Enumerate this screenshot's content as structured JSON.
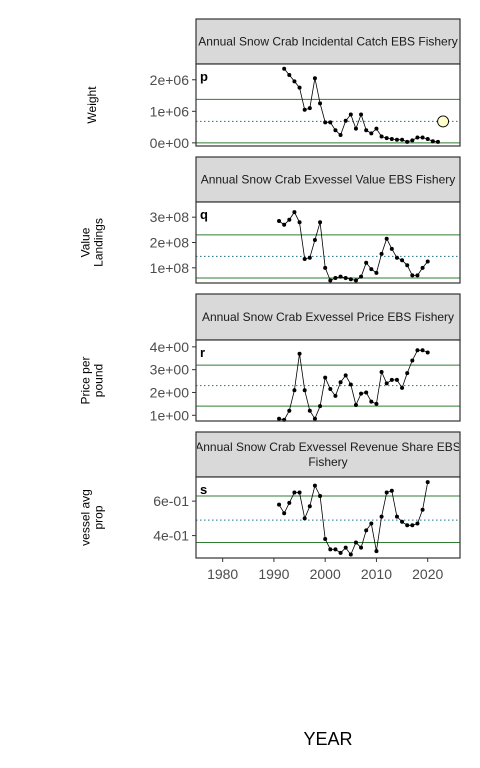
{
  "chart_data": [
    {
      "type": "line",
      "panel_tag": "p",
      "title": "Annual Snow Crab Incidental Catch EBS Fishery",
      "ylabel": "Weight",
      "yticks": [
        0,
        1000000,
        2000000
      ],
      "ytick_labels": [
        "0e+00",
        "1e+06",
        "2e+06"
      ],
      "ylim": [
        -100000,
        2500000
      ],
      "mean": 680000,
      "upper": 1380000,
      "lower": 0,
      "highlight": {
        "x": 2023,
        "y": 680000
      },
      "x": [
        1992,
        1993,
        1994,
        1995,
        1996,
        1997,
        1998,
        1999,
        2000,
        2001,
        2002,
        2003,
        2004,
        2005,
        2006,
        2007,
        2008,
        2009,
        2010,
        2011,
        2012,
        2013,
        2014,
        2015,
        2016,
        2017,
        2018,
        2019,
        2020,
        2021,
        2022
      ],
      "y": [
        2350000,
        2150000,
        1950000,
        1750000,
        1050000,
        1100000,
        2050000,
        1250000,
        650000,
        650000,
        400000,
        250000,
        700000,
        900000,
        450000,
        900000,
        400000,
        300000,
        450000,
        200000,
        150000,
        120000,
        100000,
        100000,
        30000,
        80000,
        170000,
        170000,
        120000,
        50000,
        30000
      ]
    },
    {
      "type": "line",
      "panel_tag": "q",
      "title": "Annual Snow Crab Exvessel Value EBS Fishery",
      "ylabel": "Value\nLandings",
      "yticks": [
        100000000,
        200000000,
        300000000
      ],
      "ytick_labels": [
        "1e+08",
        "2e+08",
        "3e+08"
      ],
      "ylim": [
        40000000,
        360000000
      ],
      "mean": 145000000,
      "upper": 230000000,
      "lower": 60000000,
      "x": [
        1991,
        1992,
        1993,
        1994,
        1995,
        1996,
        1997,
        1998,
        1999,
        2000,
        2001,
        2002,
        2003,
        2004,
        2005,
        2006,
        2007,
        2008,
        2009,
        2010,
        2011,
        2012,
        2013,
        2014,
        2015,
        2016,
        2017,
        2018,
        2019,
        2020
      ],
      "y": [
        285000000,
        270000000,
        290000000,
        320000000,
        280000000,
        135000000,
        140000000,
        210000000,
        280000000,
        100000000,
        50000000,
        60000000,
        65000000,
        60000000,
        55000000,
        50000000,
        65000000,
        120000000,
        95000000,
        80000000,
        155000000,
        215000000,
        175000000,
        140000000,
        130000000,
        110000000,
        70000000,
        70000000,
        100000000,
        125000000
      ]
    },
    {
      "type": "line",
      "panel_tag": "r",
      "title": "Annual Snow Crab Exvessel Price EBS Fishery",
      "ylabel": "Price per\npound",
      "yticks": [
        1,
        2,
        3,
        4
      ],
      "ytick_labels": [
        "1e+00",
        "2e+00",
        "3e+00",
        "4e+00"
      ],
      "ylim": [
        0.75,
        4.3
      ],
      "mean": 2.3,
      "upper": 3.2,
      "lower": 1.4,
      "x": [
        1991,
        1992,
        1993,
        1994,
        1995,
        1996,
        1997,
        1998,
        1999,
        2000,
        2001,
        2002,
        2003,
        2004,
        2005,
        2006,
        2007,
        2008,
        2009,
        2010,
        2011,
        2012,
        2013,
        2014,
        2015,
        2016,
        2017,
        2018,
        2019,
        2020
      ],
      "y": [
        0.85,
        0.8,
        1.2,
        2.1,
        3.7,
        2.1,
        1.2,
        0.85,
        1.4,
        2.65,
        2.15,
        1.85,
        2.45,
        2.75,
        2.35,
        1.45,
        1.95,
        2.0,
        1.6,
        1.5,
        2.9,
        2.4,
        2.55,
        2.55,
        2.2,
        2.85,
        3.4,
        3.85,
        3.85,
        3.75
      ]
    },
    {
      "type": "line",
      "panel_tag": "s",
      "title": "Annual Snow Crab Exvessel Revenue Share EBS\nFishery",
      "ylabel": "vessel avg\nprop",
      "yticks": [
        0.4,
        0.6
      ],
      "ytick_labels": [
        "4e-01",
        "6e-01"
      ],
      "ylim": [
        0.27,
        0.74
      ],
      "mean": 0.49,
      "upper": 0.63,
      "lower": 0.36,
      "x": [
        1991,
        1992,
        1993,
        1994,
        1995,
        1996,
        1997,
        1998,
        1999,
        2000,
        2001,
        2002,
        2003,
        2004,
        2005,
        2006,
        2007,
        2008,
        2009,
        2010,
        2011,
        2012,
        2013,
        2014,
        2015,
        2016,
        2017,
        2018,
        2019,
        2020
      ],
      "y": [
        0.58,
        0.53,
        0.59,
        0.65,
        0.65,
        0.5,
        0.57,
        0.69,
        0.63,
        0.38,
        0.32,
        0.32,
        0.3,
        0.33,
        0.29,
        0.36,
        0.33,
        0.43,
        0.47,
        0.31,
        0.51,
        0.65,
        0.66,
        0.51,
        0.48,
        0.46,
        0.46,
        0.47,
        0.55,
        0.71
      ]
    }
  ],
  "x_axis": {
    "title": "YEAR",
    "ticks": [
      1980,
      1990,
      2000,
      2010,
      2020
    ],
    "tick_labels": [
      "1980",
      "1990",
      "2000",
      "2010",
      "2020"
    ],
    "xlim": [
      1974.8,
      2026.3
    ]
  },
  "colors": {
    "strip_fill": "#d9d9d9",
    "panel_border": "#333333",
    "band_lines": "#2e7d32",
    "mean_line": "#1f6f8b",
    "series": "#000000",
    "highlight_fill": "#ffffcc"
  }
}
